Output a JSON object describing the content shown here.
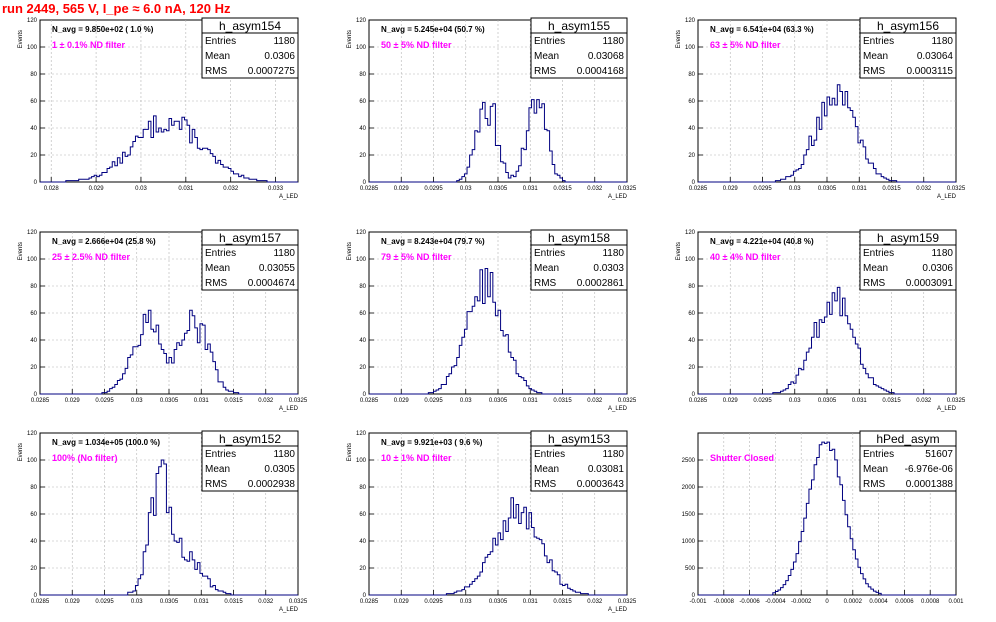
{
  "page": {
    "title": "run 2449,   565 V, I_pe ≈ 6.0 nA, 120 Hz"
  },
  "colors": {
    "hist": "#000080",
    "title": "#ff0000",
    "filter": "#ff00ff",
    "grid": "#b4b4b4"
  },
  "chart_data": [
    {
      "type": "histogram",
      "name": "h_asym154",
      "navg": "N_avg = 9.850e+02 ( 1.0 %)",
      "filter": "1 ± 0.1% ND filter",
      "stats": {
        "entries": "1180",
        "mean": "0.0306",
        "rms": "0.0007275"
      },
      "ylabel": "Events",
      "xlabel": "A_LED",
      "xlim": [
        0.02775,
        0.0335
      ],
      "ylim": [
        0,
        120
      ],
      "xticks": [
        "0.028",
        "0.029",
        "0.03",
        "0.031",
        "0.032",
        "0.033"
      ],
      "yticks": [
        "0",
        "20",
        "40",
        "60",
        "80",
        "100",
        "120"
      ],
      "dist": {
        "components": [
          [
            1.0,
            0.0306,
            0.00075
          ]
        ],
        "peak": 45,
        "noise": 0.2
      }
    },
    {
      "type": "histogram",
      "name": "h_asym155",
      "navg": "N_avg = 5.245e+04 (50.7 %)",
      "filter": "50 ± 5% ND filter",
      "stats": {
        "entries": "1180",
        "mean": "0.03068",
        "rms": "0.0004168"
      },
      "ylabel": "Events",
      "xlabel": "A_LED",
      "xlim": [
        0.0285,
        0.0325
      ],
      "ylim": [
        0,
        120
      ],
      "xticks": [
        "0.0285",
        "0.029",
        "0.0295",
        "0.03",
        "0.0305",
        "0.031",
        "0.0315",
        "0.032",
        "0.0325"
      ],
      "yticks": [
        "0",
        "20",
        "40",
        "60",
        "80",
        "100",
        "120"
      ],
      "dist": {
        "components": [
          [
            1.0,
            0.03032,
            0.00015
          ],
          [
            1.0,
            0.0311,
            0.00015
          ]
        ],
        "peak": 62,
        "noise": 0.3
      }
    },
    {
      "type": "histogram",
      "name": "h_asym156",
      "navg": "N_avg = 6.541e+04 (63.3 %)",
      "filter": "63 ± 5% ND filter",
      "stats": {
        "entries": "1180",
        "mean": "0.03064",
        "rms": "0.0003115"
      },
      "ylabel": "Events",
      "xlabel": "A_LED",
      "xlim": [
        0.0285,
        0.0325
      ],
      "ylim": [
        0,
        120
      ],
      "xticks": [
        "0.0285",
        "0.029",
        "0.0295",
        "0.03",
        "0.0305",
        "0.031",
        "0.0315",
        "0.032",
        "0.0325"
      ],
      "yticks": [
        "0",
        "20",
        "40",
        "60",
        "80",
        "100",
        "120"
      ],
      "dist": {
        "components": [
          [
            1.0,
            0.03064,
            0.00031
          ]
        ],
        "peak": 65,
        "noise": 0.2
      }
    },
    {
      "type": "histogram",
      "name": "h_asym157",
      "navg": "N_avg = 2.666e+04 (25.8 %)",
      "filter": "25 ± 2.5% ND filter",
      "stats": {
        "entries": "1180",
        "mean": "0.03055",
        "rms": "0.0004674"
      },
      "ylabel": "Events",
      "xlabel": "A_LED",
      "xlim": [
        0.0285,
        0.0325
      ],
      "ylim": [
        0,
        120
      ],
      "xticks": [
        "0.0285",
        "0.029",
        "0.0295",
        "0.03",
        "0.0305",
        "0.031",
        "0.0315",
        "0.032",
        "0.0325"
      ],
      "yticks": [
        "0",
        "20",
        "40",
        "60",
        "80",
        "100",
        "120"
      ],
      "dist": {
        "components": [
          [
            1.0,
            0.03015,
            0.00023
          ],
          [
            1.0,
            0.0309,
            0.00022
          ]
        ],
        "peak": 52,
        "noise": 0.25
      }
    },
    {
      "type": "histogram",
      "name": "h_asym158",
      "navg": "N_avg = 8.243e+04 (79.7 %)",
      "filter": "79 ± 5% ND filter",
      "stats": {
        "entries": "1180",
        "mean": "0.0303",
        "rms": "0.0002861"
      },
      "ylabel": "Events",
      "xlabel": "A_LED",
      "xlim": [
        0.0285,
        0.0325
      ],
      "ylim": [
        0,
        120
      ],
      "xticks": [
        "0.0285",
        "0.029",
        "0.0295",
        "0.03",
        "0.0305",
        "0.031",
        "0.0315",
        "0.032",
        "0.0325"
      ],
      "yticks": [
        "0",
        "20",
        "40",
        "60",
        "80",
        "100",
        "120"
      ],
      "dist": {
        "components": [
          [
            1.0,
            0.0303,
            0.00029
          ]
        ],
        "peak": 80,
        "noise": 0.2
      }
    },
    {
      "type": "histogram",
      "name": "h_asym159",
      "navg": "N_avg = 4.221e+04 (40.8 %)",
      "filter": "40 ± 4% ND filter",
      "stats": {
        "entries": "1180",
        "mean": "0.0306",
        "rms": "0.0003091"
      },
      "ylabel": "Events",
      "xlabel": "A_LED",
      "xlim": [
        0.0285,
        0.0325
      ],
      "ylim": [
        0,
        120
      ],
      "xticks": [
        "0.0285",
        "0.029",
        "0.0295",
        "0.03",
        "0.0305",
        "0.031",
        "0.0315",
        "0.032",
        "0.0325"
      ],
      "yticks": [
        "0",
        "20",
        "40",
        "60",
        "80",
        "100",
        "120"
      ],
      "dist": {
        "components": [
          [
            1.0,
            0.0306,
            0.00031
          ]
        ],
        "peak": 69,
        "noise": 0.2
      }
    },
    {
      "type": "histogram",
      "name": "h_asym152",
      "navg": "N_avg = 1.034e+05 (100.0 %)",
      "filter": "100% (No filter)",
      "stats": {
        "entries": "1180",
        "mean": "0.0305",
        "rms": "0.0002938"
      },
      "ylabel": "Events",
      "xlabel": "A_LED",
      "xlim": [
        0.0285,
        0.0325
      ],
      "ylim": [
        0,
        120
      ],
      "xticks": [
        "0.0285",
        "0.029",
        "0.0295",
        "0.03",
        "0.0305",
        "0.031",
        "0.0315",
        "0.032",
        "0.0325"
      ],
      "yticks": [
        "0",
        "20",
        "40",
        "60",
        "80",
        "100",
        "120"
      ],
      "dist": {
        "components": [
          [
            1.0,
            0.03035,
            0.00016
          ],
          [
            0.45,
            0.0307,
            0.00028
          ]
        ],
        "peak": 82,
        "noise": 0.25
      }
    },
    {
      "type": "histogram",
      "name": "h_asym153",
      "navg": "N_avg = 9.921e+03 ( 9.6 %)",
      "filter": "10 ± 1% ND filter",
      "stats": {
        "entries": "1180",
        "mean": "0.03081",
        "rms": "0.0003643"
      },
      "ylabel": "Events",
      "xlabel": "A_LED",
      "xlim": [
        0.0285,
        0.0325
      ],
      "ylim": [
        0,
        120
      ],
      "xticks": [
        "0.0285",
        "0.029",
        "0.0295",
        "0.03",
        "0.0305",
        "0.031",
        "0.0315",
        "0.032",
        "0.0325"
      ],
      "yticks": [
        "0",
        "20",
        "40",
        "60",
        "80",
        "100",
        "120"
      ],
      "dist": {
        "components": [
          [
            1.0,
            0.0308,
            0.00036
          ]
        ],
        "peak": 62,
        "noise": 0.2
      }
    },
    {
      "type": "histogram",
      "name": "hPed_asym",
      "navg": "",
      "filter": "Shutter Closed",
      "stats": {
        "entries": "51607",
        "mean": "-6.976e-06",
        "rms": "0.0001388"
      },
      "ylabel": "",
      "xlabel": "",
      "xlim": [
        -0.001,
        0.001
      ],
      "ylim": [
        0,
        3000
      ],
      "xticks": [
        "-0.001",
        "-0.0008",
        "-0.0006",
        "-0.0004",
        "-0.0002",
        "0",
        "0.0002",
        "0.0004",
        "0.0006",
        "0.0008",
        "0.001"
      ],
      "yticks": [
        "0",
        "500",
        "1000",
        "1500",
        "2000",
        "2500"
      ],
      "dist": {
        "components": [
          [
            1.0,
            -7e-06,
            0.000139
          ]
        ],
        "peak": 2850,
        "noise": 0.03
      }
    }
  ]
}
